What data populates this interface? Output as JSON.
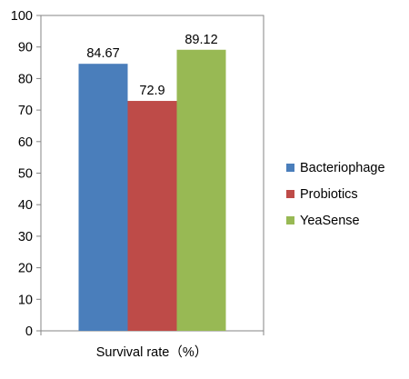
{
  "chart_data": {
    "type": "bar",
    "title": "",
    "xlabel": "Survival rate（%）",
    "ylabel": "",
    "ylim": [
      0,
      100
    ],
    "yticks": [
      0,
      10,
      20,
      30,
      40,
      50,
      60,
      70,
      80,
      90,
      100
    ],
    "categories": [
      "Survival rate（%）"
    ],
    "series": [
      {
        "name": "Bacteriophage",
        "values": [
          84.67
        ],
        "color": "#4a7ebb",
        "label": "84.67"
      },
      {
        "name": "Probiotics",
        "values": [
          72.9
        ],
        "color": "#be4b48",
        "label": "72.9"
      },
      {
        "name": "YeaSense",
        "values": [
          89.12
        ],
        "color": "#98b954",
        "label": "89.12"
      }
    ],
    "grid": false,
    "legend_position": "right"
  },
  "legend": {
    "items": [
      {
        "label": "Bacteriophage",
        "color": "#4a7ebb"
      },
      {
        "label": "Probiotics",
        "color": "#be4b48"
      },
      {
        "label": "YeaSense",
        "color": "#98b954"
      }
    ]
  }
}
